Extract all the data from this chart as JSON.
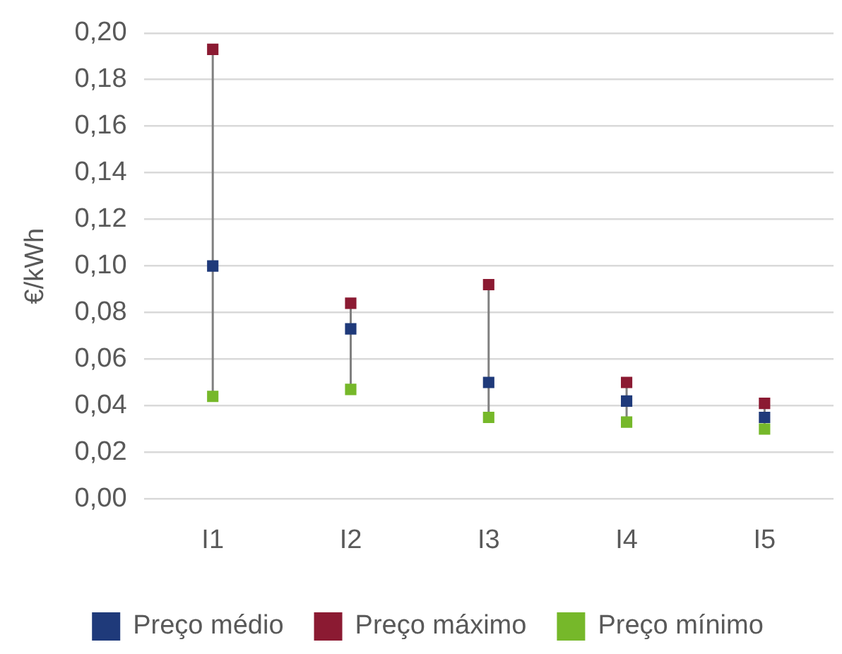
{
  "chart_data": {
    "type": "scatter",
    "ylabel": "€/kWh",
    "categories": [
      "I1",
      "I2",
      "I3",
      "I4",
      "I5"
    ],
    "series": [
      {
        "name": "Preço médio",
        "color": "#1f3a7a",
        "x": [
          "I1",
          "I2",
          "I3",
          "I4",
          "I5"
        ],
        "values": [
          0.1,
          0.073,
          0.05,
          0.042,
          0.035
        ]
      },
      {
        "name": "Preço máximo",
        "color": "#8b1a32",
        "x": [
          "I1",
          "I2",
          "I3",
          "I4",
          "I5"
        ],
        "values": [
          0.193,
          0.084,
          0.092,
          0.05,
          0.041
        ]
      },
      {
        "name": "Preço mínimo",
        "color": "#76b82a",
        "x": [
          "I1",
          "I2",
          "I3",
          "I4",
          "I5"
        ],
        "values": [
          0.044,
          0.047,
          0.035,
          0.033,
          0.03
        ]
      }
    ],
    "ylim": [
      0,
      0.2
    ],
    "yticks": [
      {
        "value": 0,
        "label": "0,00"
      },
      {
        "value": 0.02,
        "label": "0,02"
      },
      {
        "value": 0.04,
        "label": "0,04"
      },
      {
        "value": 0.06,
        "label": "0,06"
      },
      {
        "value": 0.08,
        "label": "0,08"
      },
      {
        "value": 0.1,
        "label": "0,10"
      },
      {
        "value": 0.12,
        "label": "0,12"
      },
      {
        "value": 0.14,
        "label": "0,14"
      },
      {
        "value": 0.16,
        "label": "0,16"
      },
      {
        "value": 0.18,
        "label": "0,18"
      },
      {
        "value": 0.2,
        "label": "0,20"
      }
    ],
    "grid": "y",
    "legend": "bottom",
    "marker": "square"
  }
}
